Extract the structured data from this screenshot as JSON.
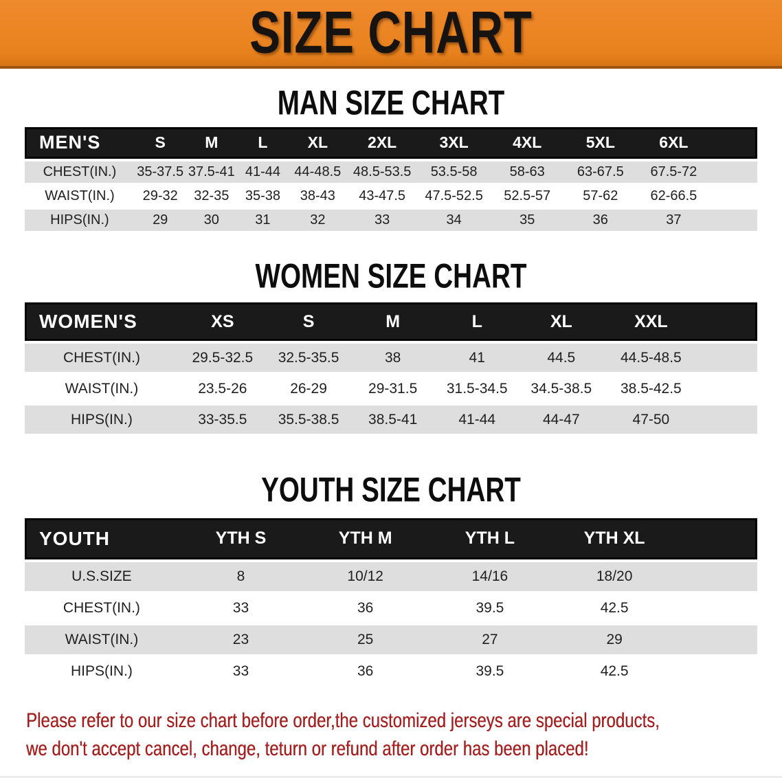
{
  "banner": {
    "title": "SIZE CHART",
    "bg_color": "#E8821E"
  },
  "colors": {
    "banner_orange": "#E8821E",
    "header_black": "#1A1A1A",
    "stripe_gray": "#DEDEDE",
    "notice_red": "#A32121"
  },
  "sections": [
    {
      "heading": "MAN SIZE CHART",
      "corner_label": "MEN'S",
      "sizes": [
        "S",
        "M",
        "L",
        "XL",
        "2XL",
        "3XL",
        "4XL",
        "5XL",
        "6XL"
      ],
      "rows": [
        {
          "label": "CHEST(IN.)",
          "values": [
            "35-37.5",
            "37.5-41",
            "41-44",
            "44-48.5",
            "48.5-53.5",
            "53.5-58",
            "58-63",
            "63-67.5",
            "67.5-72"
          ]
        },
        {
          "label": "WAIST(IN.)",
          "values": [
            "29-32",
            "32-35",
            "35-38",
            "38-43",
            "43-47.5",
            "47.5-52.5",
            "52.5-57",
            "57-62",
            "62-66.5"
          ]
        },
        {
          "label": "HIPS(IN.)",
          "values": [
            "29",
            "30",
            "31",
            "32",
            "33",
            "34",
            "35",
            "36",
            "37"
          ]
        }
      ]
    },
    {
      "heading": "WOMEN SIZE CHART",
      "corner_label": "WOMEN'S",
      "sizes": [
        "XS",
        "S",
        "M",
        "L",
        "XL",
        "XXL"
      ],
      "rows": [
        {
          "label": "CHEST(IN.)",
          "values": [
            "29.5-32.5",
            "32.5-35.5",
            "38",
            "41",
            "44.5",
            "44.5-48.5"
          ]
        },
        {
          "label": "WAIST(IN.)",
          "values": [
            "23.5-26",
            "26-29",
            "29-31.5",
            "31.5-34.5",
            "34.5-38.5",
            "38.5-42.5"
          ]
        },
        {
          "label": "HIPS(IN.)",
          "values": [
            "33-35.5",
            "35.5-38.5",
            "38.5-41",
            "41-44",
            "44-47",
            "47-50"
          ]
        }
      ]
    },
    {
      "heading": "YOUTH SIZE CHART",
      "corner_label": "YOUTH",
      "sizes": [
        "YTH S",
        "YTH M",
        "YTH L",
        "YTH XL"
      ],
      "rows": [
        {
          "label": "U.S.SIZE",
          "values": [
            "8",
            "10/12",
            "14/16",
            "18/20"
          ]
        },
        {
          "label": "CHEST(IN.)",
          "values": [
            "33",
            "36",
            "39.5",
            "42.5"
          ]
        },
        {
          "label": "WAIST(IN.)",
          "values": [
            "23",
            "25",
            "27",
            "29"
          ]
        },
        {
          "label": "HIPS(IN.)",
          "values": [
            "33",
            "36",
            "39.5",
            "42.5"
          ]
        }
      ]
    }
  ],
  "footer": {
    "line1": "Please refer to our size chart before order,the customized jerseys are special products,",
    "line2": "we don't accept cancel, change, teturn or refund after order has been placed!"
  }
}
